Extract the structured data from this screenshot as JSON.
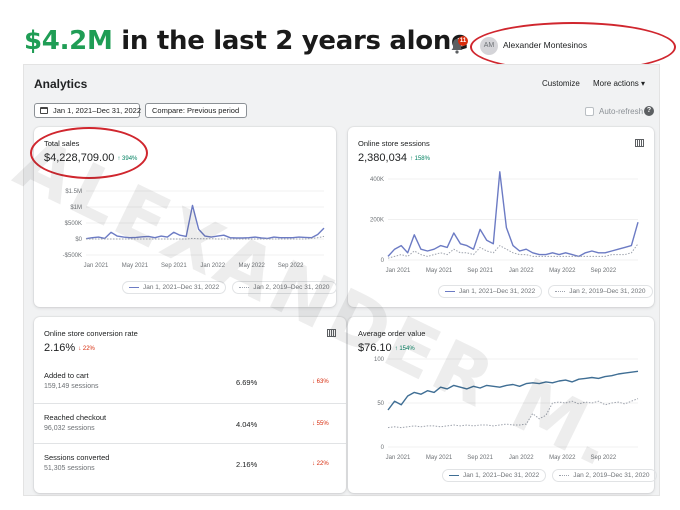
{
  "headline": {
    "accent": "$4.2M",
    "rest": " in the last 2 years alone"
  },
  "topbar": {
    "notification_count": "11",
    "avatar_initials": "AM",
    "username": "Alexander Montesinos"
  },
  "header": {
    "title": "Analytics",
    "customize_label": "Customize",
    "more_actions_label": "More actions ▾"
  },
  "filters": {
    "date_range": "Jan 1, 2021–Dec 31, 2022",
    "compare": "Compare: Previous period",
    "auto_refresh_label": "Auto-refresh"
  },
  "watermark": "ALEXANDER M.",
  "legend": {
    "current": "Jan 1, 2021–Dec 31, 2022",
    "previous": "Jan 2, 2019–Dec 31, 2020"
  },
  "colors": {
    "current_series": "#6c7bc4",
    "previous_series": "#9ea3ad",
    "avg_order_series": "#3f6e94",
    "accent_green": "#1f9d55",
    "annotation_red": "#d0262e"
  },
  "total_sales": {
    "title": "Total sales",
    "value": "$4,228,709.00",
    "delta": "↑ 394%",
    "chart_data": {
      "type": "line",
      "y_ticks": [
        "$1.5M",
        "$1M",
        "$500K",
        "$0",
        "-$500K"
      ],
      "x_ticks": [
        "Jan 2021",
        "May 2021",
        "Sep 2021",
        "Jan 2022",
        "May 2022",
        "Sep 2022"
      ],
      "ylim": [
        -500000,
        1500000
      ],
      "series": [
        {
          "name": "Jan 1, 2021–Dec 31, 2022",
          "values": [
            10000,
            40000,
            60000,
            20000,
            210000,
            90000,
            60000,
            40000,
            50000,
            70000,
            80000,
            40000,
            90000,
            60000,
            210000,
            120000,
            80000,
            1050000,
            300000,
            90000,
            60000,
            90000,
            120000,
            40000,
            30000,
            30000,
            40000,
            60000,
            30000,
            20000,
            60000,
            40000,
            40000,
            40000,
            60000,
            50000,
            40000,
            140000,
            340000
          ]
        },
        {
          "name": "Jan 2, 2019–Dec 31, 2020",
          "values": [
            0,
            0,
            0,
            0,
            0,
            0,
            0,
            0,
            0,
            0,
            0,
            0,
            0,
            0,
            0,
            0,
            0,
            20000,
            10000,
            10000,
            10000,
            0,
            0,
            0,
            0,
            0,
            0,
            0,
            0,
            0,
            0,
            0,
            0,
            0,
            0,
            0,
            20000,
            40000,
            80000
          ]
        }
      ]
    }
  },
  "sessions": {
    "title": "Online store sessions",
    "value": "2,380,034",
    "delta": "↑ 158%",
    "chart_data": {
      "type": "line",
      "y_ticks": [
        "400K",
        "200K",
        "0"
      ],
      "x_ticks": [
        "Jan 2021",
        "May 2021",
        "Sep 2021",
        "Jan 2022",
        "May 2022",
        "Sep 2022"
      ],
      "ylim": [
        0,
        450000
      ],
      "series": [
        {
          "name": "Jan 1, 2021–Dec 31, 2022",
          "values": [
            20000,
            60000,
            80000,
            40000,
            140000,
            60000,
            50000,
            60000,
            80000,
            70000,
            150000,
            90000,
            80000,
            60000,
            170000,
            110000,
            90000,
            490000,
            180000,
            80000,
            50000,
            60000,
            40000,
            30000,
            30000,
            40000,
            30000,
            40000,
            30000,
            20000,
            40000,
            50000,
            40000,
            40000,
            50000,
            60000,
            70000,
            80000,
            210000
          ]
        },
        {
          "name": "Jan 2, 2019–Dec 31, 2020",
          "values": [
            10000,
            20000,
            30000,
            20000,
            50000,
            30000,
            20000,
            30000,
            40000,
            30000,
            60000,
            40000,
            40000,
            30000,
            70000,
            50000,
            40000,
            80000,
            60000,
            40000,
            30000,
            30000,
            20000,
            20000,
            20000,
            20000,
            20000,
            20000,
            20000,
            20000,
            20000,
            20000,
            20000,
            20000,
            30000,
            30000,
            30000,
            40000,
            90000
          ]
        }
      ]
    }
  },
  "conversion": {
    "title": "Online store conversion rate",
    "value": "2.16%",
    "delta": "↓ 22%",
    "rows": [
      {
        "label": "Added to cart",
        "sessions": "159,149 sessions",
        "rate": "6.69%",
        "delta": "↓ 63%"
      },
      {
        "label": "Reached checkout",
        "sessions": "96,032 sessions",
        "rate": "4.04%",
        "delta": "↓ 55%"
      },
      {
        "label": "Sessions converted",
        "sessions": "51,305 sessions",
        "rate": "2.16%",
        "delta": "↓ 22%"
      }
    ]
  },
  "aov": {
    "title": "Average order value",
    "value": "$76.10",
    "delta": "↑ 154%",
    "chart_data": {
      "type": "line",
      "y_ticks": [
        "100",
        "50",
        "0"
      ],
      "x_ticks": [
        "Jan 2021",
        "May 2021",
        "Sep 2021",
        "Jan 2022",
        "May 2022",
        "Sep 2022"
      ],
      "ylim": [
        0,
        100
      ],
      "series": [
        {
          "name": "Jan 1, 2021–Dec 31, 2022",
          "values": [
            42,
            52,
            48,
            58,
            62,
            60,
            64,
            62,
            68,
            66,
            70,
            68,
            66,
            69,
            67,
            70,
            69,
            68,
            70,
            71,
            69,
            72,
            73,
            72,
            74,
            73,
            75,
            76,
            74,
            77,
            78,
            79,
            78,
            80,
            81,
            83,
            84,
            85,
            86
          ]
        },
        {
          "name": "Jan 2, 2019–Dec 31, 2020",
          "values": [
            22,
            23,
            22,
            23,
            24,
            23,
            24,
            24,
            23,
            24,
            25,
            24,
            25,
            24,
            25,
            25,
            24,
            25,
            26,
            25,
            25,
            26,
            38,
            32,
            36,
            50,
            51,
            50,
            52,
            49,
            51,
            50,
            52,
            48,
            50,
            51,
            49,
            52,
            55
          ]
        }
      ]
    }
  }
}
